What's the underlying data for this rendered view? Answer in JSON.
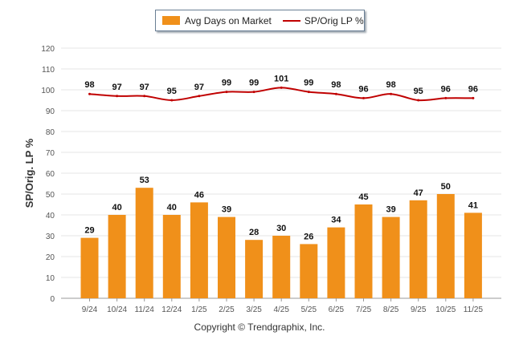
{
  "chart_data": {
    "type": "bar",
    "title": "",
    "xlabel": "",
    "ylabel": "SP/Orig. LP %",
    "ylim": [
      0,
      120
    ],
    "yticks": [
      0,
      10,
      20,
      30,
      40,
      50,
      60,
      70,
      80,
      90,
      100,
      110,
      120
    ],
    "categories": [
      "9/24",
      "10/24",
      "11/24",
      "12/24",
      "1/25",
      "2/25",
      "3/25",
      "4/25",
      "5/25",
      "6/25",
      "7/25",
      "8/25",
      "9/25",
      "10/25",
      "11/25"
    ],
    "series": [
      {
        "name": "Avg Days on Market",
        "kind": "bar",
        "color": "#f0901a",
        "values": [
          29,
          40,
          53,
          40,
          46,
          39,
          28,
          30,
          26,
          34,
          45,
          39,
          47,
          50,
          41
        ]
      },
      {
        "name": "SP/Orig LP %",
        "kind": "line",
        "color": "#c00000",
        "values": [
          98,
          97,
          97,
          95,
          97,
          99,
          99,
          101,
          99,
          98,
          96,
          98,
          95,
          96,
          96
        ]
      }
    ],
    "legend": "top-center",
    "grid": true
  },
  "footer": {
    "copyright": "Copyright © Trendgraphix, Inc."
  }
}
